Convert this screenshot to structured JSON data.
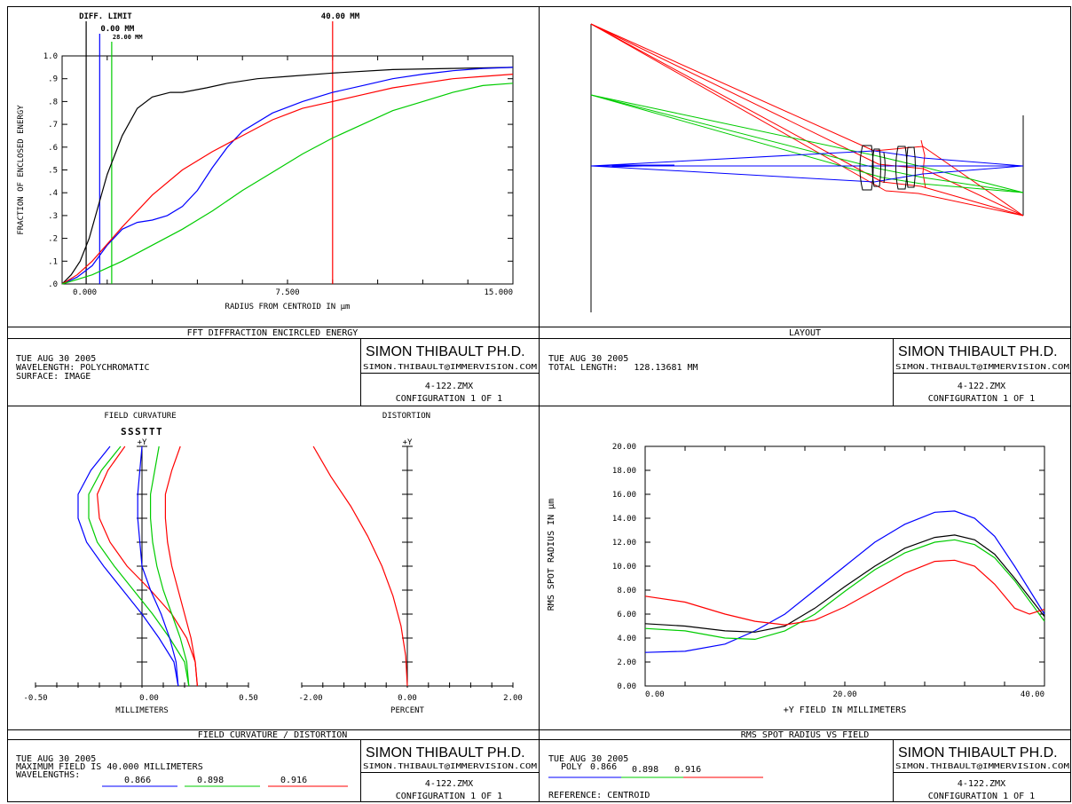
{
  "panels": {
    "ee": {
      "title": "FFT DIFFRACTION ENCIRCLED ENERGY",
      "info": [
        "TUE AUG 30 2005",
        "WAVELENGTH: POLYCHROMATIC",
        "SURFACE: IMAGE"
      ],
      "author": "SIMON THIBAULT PH.D.",
      "email": "SIMON.THIBAULT@IMMERVISION.COM",
      "file": "4-122.ZMX",
      "config": "CONFIGURATION 1 OF 1"
    },
    "layout": {
      "title": "LAYOUT",
      "info": [
        "TUE AUG 30 2005",
        "TOTAL LENGTH:   128.13681 MM"
      ],
      "author": "SIMON THIBAULT PH.D.",
      "email": "SIMON.THIBAULT@IMMERVISION.COM",
      "file": "4-122.ZMX",
      "config": "CONFIGURATION 1 OF 1"
    },
    "fc": {
      "title": "FIELD CURVATURE / DISTORTION",
      "info": [
        "TUE AUG 30 2005",
        "MAXIMUM FIELD IS 40.000 MILLIMETERS",
        "WAVELENGTHS:"
      ],
      "wavelengths": [
        "0.866",
        "0.898",
        "0.916"
      ],
      "author": "SIMON THIBAULT PH.D.",
      "email": "SIMON.THIBAULT@IMMERVISION.COM",
      "file": "4-122.ZMX",
      "config": "CONFIGURATION 1 OF 1"
    },
    "rms": {
      "title": "RMS SPOT RADIUS VS FIELD",
      "info": [
        "TUE AUG 30 2005"
      ],
      "poly_label": "POLY",
      "wavelengths": [
        "0.866",
        "0.898",
        "0.916"
      ],
      "reference": "REFERENCE: CENTROID",
      "author": "SIMON THIBAULT PH.D.",
      "email": "SIMON.THIBAULT@IMMERVISION.COM",
      "file": "4-122.ZMX",
      "config": "CONFIGURATION 1 OF 1"
    }
  },
  "colors": {
    "blue": "#0000ff",
    "green": "#00cc00",
    "red": "#ff0000",
    "black": "#000000"
  },
  "chart_data": [
    {
      "type": "line",
      "title": "FFT DIFFRACTION ENCIRCLED ENERGY",
      "xlabel": "RADIUS FROM CENTROID IN µm",
      "ylabel": "FRACTION OF ENCLOSED ENERGY",
      "xlim": [
        0,
        15
      ],
      "ylim": [
        0,
        1
      ],
      "xticks": [
        "0.000",
        "7.500",
        "15.000"
      ],
      "yticks": [
        ".0",
        ".1",
        ".2",
        ".3",
        ".4",
        ".5",
        ".6",
        ".7",
        ".8",
        ".9",
        "1.0"
      ],
      "markers": [
        {
          "label": "DIFF. LIMIT",
          "x": 0.8,
          "color": "#000000"
        },
        {
          "label": "0.00 MM",
          "x": 1.25,
          "color": "#0000ff"
        },
        {
          "label": "28.00 MM",
          "x": 1.65,
          "color": "#00cc00"
        },
        {
          "label": "40.00 MM",
          "x": 9.0,
          "color": "#ff0000"
        }
      ],
      "series": [
        {
          "color": "#000000",
          "x": [
            0,
            0.3,
            0.6,
            0.9,
            1.2,
            1.5,
            2.0,
            2.5,
            3.0,
            3.6,
            4.0,
            4.8,
            5.5,
            6.5,
            7.5,
            9.0,
            11.0,
            13.0,
            15.0
          ],
          "y": [
            0,
            0.04,
            0.1,
            0.2,
            0.34,
            0.48,
            0.65,
            0.77,
            0.82,
            0.84,
            0.84,
            0.86,
            0.88,
            0.9,
            0.91,
            0.925,
            0.94,
            0.945,
            0.95
          ]
        },
        {
          "color": "#0000ff",
          "x": [
            0,
            0.5,
            1.0,
            1.5,
            2.0,
            2.5,
            3.0,
            3.5,
            4.0,
            4.5,
            5.0,
            5.5,
            6.0,
            7.0,
            8.0,
            9.0,
            10.0,
            11.0,
            12.0,
            13.0,
            14.0,
            15.0
          ],
          "y": [
            0,
            0.03,
            0.08,
            0.17,
            0.24,
            0.27,
            0.28,
            0.3,
            0.34,
            0.41,
            0.51,
            0.6,
            0.67,
            0.75,
            0.8,
            0.84,
            0.87,
            0.9,
            0.92,
            0.935,
            0.945,
            0.95
          ]
        },
        {
          "color": "#ff0000",
          "x": [
            0,
            0.5,
            1.0,
            2.0,
            3.0,
            4.0,
            5.0,
            6.0,
            7.0,
            8.0,
            9.0,
            10.0,
            11.0,
            12.0,
            13.0,
            14.0,
            15.0
          ],
          "y": [
            0,
            0.04,
            0.1,
            0.25,
            0.39,
            0.5,
            0.58,
            0.65,
            0.72,
            0.77,
            0.8,
            0.83,
            0.86,
            0.88,
            0.9,
            0.91,
            0.92
          ]
        },
        {
          "color": "#00cc00",
          "x": [
            0,
            0.5,
            1.0,
            2.0,
            3.0,
            4.0,
            5.0,
            6.0,
            7.0,
            8.0,
            9.0,
            10.0,
            11.0,
            12.0,
            13.0,
            14.0,
            15.0
          ],
          "y": [
            0,
            0.02,
            0.04,
            0.1,
            0.17,
            0.24,
            0.32,
            0.41,
            0.49,
            0.57,
            0.64,
            0.7,
            0.76,
            0.8,
            0.84,
            0.87,
            0.88
          ]
        }
      ]
    },
    {
      "type": "line",
      "title": "FIELD CURVATURE",
      "xlabel": "MILLIMETERS",
      "xlim": [
        -0.5,
        0.5
      ],
      "xticks": [
        "-0.50",
        "0.00",
        "0.50"
      ],
      "ylim": [
        0,
        40
      ],
      "axis_label": "+Y",
      "legend": [
        "S",
        "S",
        "S",
        "T",
        "T",
        "T"
      ],
      "legend_colors": [
        "#0000ff",
        "#00cc00",
        "#ff0000",
        "#0000ff",
        "#00cc00",
        "#ff0000"
      ],
      "field": [
        0,
        4,
        8,
        12,
        16,
        20,
        24,
        28,
        32,
        36,
        40
      ],
      "series": [
        {
          "color": "#0000ff",
          "x": [
            0.17,
            0.15,
            0.08,
            0.0,
            -0.09,
            -0.18,
            -0.26,
            -0.3,
            -0.3,
            -0.24,
            -0.15
          ]
        },
        {
          "color": "#00cc00",
          "x": [
            0.22,
            0.2,
            0.13,
            0.05,
            -0.04,
            -0.13,
            -0.21,
            -0.25,
            -0.25,
            -0.19,
            -0.1
          ]
        },
        {
          "color": "#ff0000",
          "x": [
            0.26,
            0.25,
            0.21,
            0.14,
            0.04,
            -0.07,
            -0.15,
            -0.2,
            -0.21,
            -0.16,
            -0.08
          ]
        },
        {
          "color": "#0000ff",
          "x": [
            0.17,
            0.16,
            0.13,
            0.09,
            0.04,
            0.0,
            -0.01,
            -0.02,
            -0.02,
            -0.01,
            0.0
          ]
        },
        {
          "color": "#00cc00",
          "x": [
            0.22,
            0.21,
            0.18,
            0.14,
            0.1,
            0.07,
            0.05,
            0.04,
            0.04,
            0.06,
            0.08
          ]
        },
        {
          "color": "#ff0000",
          "x": [
            0.26,
            0.25,
            0.23,
            0.2,
            0.17,
            0.14,
            0.12,
            0.11,
            0.11,
            0.14,
            0.18
          ]
        }
      ]
    },
    {
      "type": "line",
      "title": "DISTORTION",
      "xlabel": "PERCENT",
      "xlim": [
        -2,
        2
      ],
      "xticks": [
        "-2.00",
        "0.00",
        "2.00"
      ],
      "ylim": [
        0,
        40
      ],
      "axis_label": "+Y",
      "series": [
        {
          "color": "#ff0000",
          "field": [
            0,
            5,
            10,
            15,
            20,
            25,
            30,
            35,
            40
          ],
          "x": [
            0.0,
            -0.03,
            -0.12,
            -0.27,
            -0.48,
            -0.75,
            -1.07,
            -1.45,
            -1.78
          ]
        }
      ]
    },
    {
      "type": "line",
      "title": "RMS SPOT RADIUS VS FIELD",
      "xlabel": "+Y FIELD IN MILLIMETERS",
      "ylabel": "RMS SPOT RADIUS IN µm",
      "xlim": [
        0,
        40
      ],
      "ylim": [
        0,
        20
      ],
      "xticks": [
        "0.00",
        "20.00",
        "40.00"
      ],
      "yticks": [
        "0.00",
        "2.00",
        "4.00",
        "6.00",
        "8.00",
        "10.00",
        "12.00",
        "14.00",
        "16.00",
        "18.00",
        "20.00"
      ],
      "series": [
        {
          "color": "#0000ff",
          "x": [
            0,
            4,
            8,
            11,
            14,
            17,
            20,
            23,
            26,
            29,
            31,
            33,
            35,
            37,
            40
          ],
          "y": [
            2.8,
            2.9,
            3.5,
            4.6,
            6.0,
            8.0,
            10.0,
            12.0,
            13.5,
            14.5,
            14.6,
            14.0,
            12.5,
            10.0,
            6.0
          ]
        },
        {
          "color": "#000000",
          "x": [
            0,
            4,
            8,
            11,
            14,
            17,
            20,
            23,
            26,
            29,
            31,
            33,
            35,
            37,
            40
          ],
          "y": [
            5.2,
            5.0,
            4.6,
            4.5,
            5.0,
            6.5,
            8.3,
            10.0,
            11.5,
            12.4,
            12.6,
            12.2,
            11.0,
            9.0,
            5.8
          ]
        },
        {
          "color": "#00cc00",
          "x": [
            0,
            4,
            8,
            11,
            14,
            17,
            20,
            23,
            26,
            29,
            31,
            33,
            35,
            37,
            40
          ],
          "y": [
            4.8,
            4.6,
            4.0,
            3.9,
            4.6,
            6.0,
            7.9,
            9.7,
            11.1,
            12.0,
            12.2,
            11.8,
            10.7,
            8.8,
            5.4
          ]
        },
        {
          "color": "#ff0000",
          "x": [
            0,
            4,
            8,
            11,
            14,
            17,
            20,
            23,
            26,
            29,
            31,
            33,
            35,
            37,
            38.5,
            40
          ],
          "y": [
            7.5,
            7.0,
            6.0,
            5.4,
            5.1,
            5.5,
            6.6,
            8.0,
            9.4,
            10.4,
            10.5,
            10.0,
            8.5,
            6.5,
            6.0,
            6.4
          ]
        }
      ]
    }
  ]
}
